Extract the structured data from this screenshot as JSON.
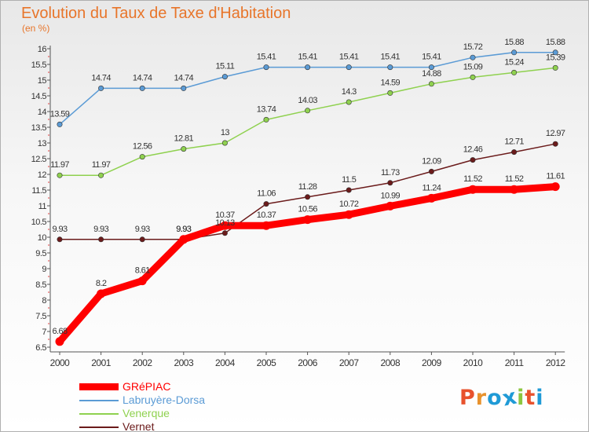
{
  "title": "Evolution du Taux de Taxe d'Habitation",
  "unit_label": "(en %)",
  "logo": {
    "text": "Proxiti",
    "letters": [
      "P",
      "r",
      "o",
      "x",
      "i",
      "t",
      "i"
    ],
    "colors": [
      "#e8522d",
      "#e8922d",
      "#1f9ad6",
      "#1f9ad6",
      "#8cc63f",
      "#e8522d",
      "#1f9ad6"
    ]
  },
  "chart_data": {
    "type": "line",
    "x": [
      "2000",
      "2001",
      "2002",
      "2003",
      "2004",
      "2005",
      "2006",
      "2007",
      "2008",
      "2009",
      "2010",
      "2011",
      "2012"
    ],
    "ylim": [
      6.5,
      16
    ],
    "y_ticks": [
      "6.5",
      "7",
      "7.5",
      "8",
      "8.5",
      "9",
      "9.5",
      "10",
      "10.5",
      "11",
      "11.5",
      "12",
      "12.5",
      "13",
      "13.5",
      "14",
      "14.5",
      "15",
      "15.5",
      "16"
    ],
    "grid": false,
    "legend_position": "bottom-left",
    "series": [
      {
        "name": "GRéPIAC",
        "color": "#ff0000",
        "values": [
          6.68,
          8.2,
          8.61,
          9.93,
          10.37,
          10.37,
          10.56,
          10.72,
          10.99,
          11.24,
          11.52,
          11.52,
          11.61
        ],
        "labels": [
          "6.68",
          "8.2",
          "8.61",
          "9.93",
          "10.37",
          "10.37",
          "10.56",
          "10.72",
          "10.99",
          "11.24",
          "11.52",
          "11.52",
          "11.61"
        ]
      },
      {
        "name": "Labruyère-Dorsa",
        "color": "#5b9bd5",
        "values": [
          13.59,
          14.74,
          14.74,
          14.74,
          15.11,
          15.41,
          15.41,
          15.41,
          15.41,
          15.41,
          15.72,
          15.88,
          15.88
        ],
        "labels": [
          "13.59",
          "14.74",
          "14.74",
          "14.74",
          "15.11",
          "15.41",
          "15.41",
          "15.41",
          "15.41",
          "15.41",
          "15.72",
          "15.88",
          "15.88"
        ]
      },
      {
        "name": "Venerque",
        "color": "#8fd14f",
        "values": [
          11.97,
          11.97,
          12.56,
          12.81,
          13,
          13.74,
          14.03,
          14.3,
          14.59,
          14.88,
          15.09,
          15.24,
          15.39
        ],
        "labels": [
          "11.97",
          "11.97",
          "12.56",
          "12.81",
          "13",
          "13.74",
          "14.03",
          "14.3",
          "14.59",
          "14.88",
          "15.09",
          "15.24",
          "15.39"
        ]
      },
      {
        "name": "Vernet",
        "color": "#6b1b1b",
        "values": [
          9.93,
          9.93,
          9.93,
          9.93,
          10.13,
          11.06,
          11.28,
          11.5,
          11.73,
          12.09,
          12.46,
          12.71,
          12.97
        ],
        "labels": [
          "9.93",
          "9.93",
          "9.93",
          "9.93",
          "10.13",
          "11.06",
          "11.28",
          "11.5",
          "11.73",
          "12.09",
          "12.46",
          "12.71",
          "12.97"
        ]
      }
    ]
  }
}
